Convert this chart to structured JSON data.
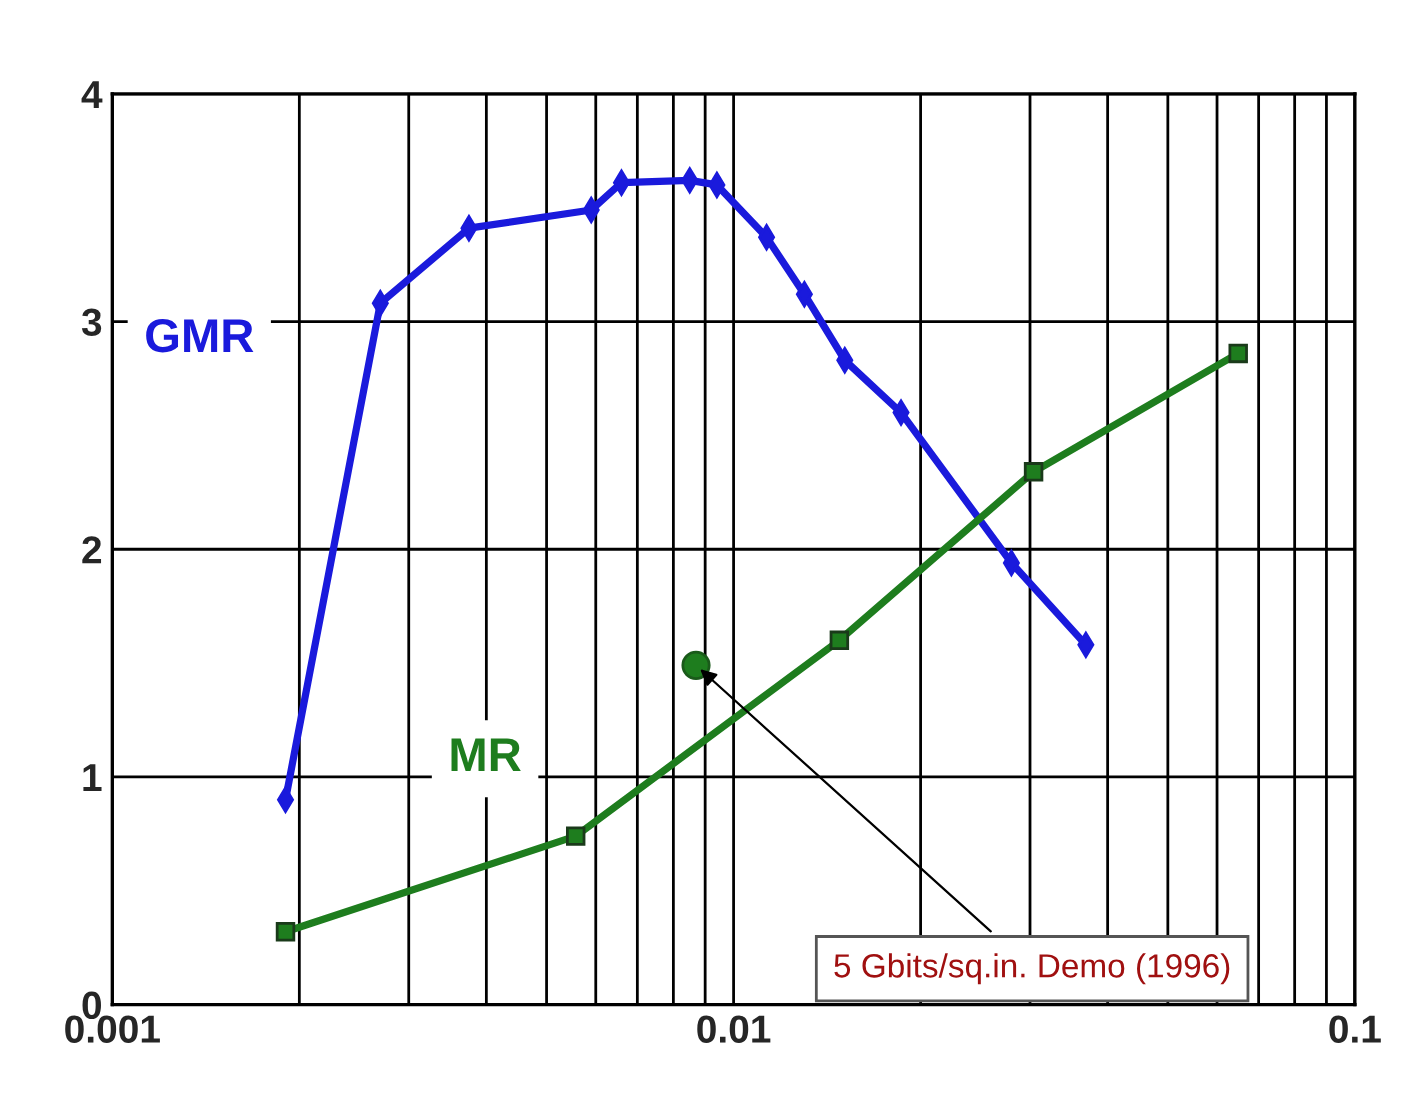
{
  "chart_data": {
    "type": "line",
    "log": "x",
    "xlim": [
      0.001,
      0.1
    ],
    "xticks": [
      0.001,
      0.01,
      0.1
    ],
    "ylim": [
      0,
      4
    ],
    "yticks": [
      0,
      1,
      2,
      3,
      4
    ],
    "grid": true,
    "legend": false,
    "series": [
      {
        "name": "GMR",
        "color": "#1a1adc",
        "marker": "diamond",
        "x": [
          0.0019,
          0.0027,
          0.00375,
          0.0059,
          0.0066,
          0.0085,
          0.0094,
          0.0113,
          0.013,
          0.0151,
          0.0186,
          0.028,
          0.0369
        ],
        "values": [
          0.9,
          3.08,
          3.41,
          3.49,
          3.61,
          3.62,
          3.6,
          3.37,
          3.12,
          2.83,
          2.6,
          1.94,
          1.58
        ]
      },
      {
        "name": "MR",
        "color": "#1e7d1e",
        "marker": "square",
        "x": [
          0.0019,
          0.00557,
          0.0148,
          0.0304,
          0.0649
        ],
        "values": [
          0.32,
          0.74,
          1.6,
          2.34,
          2.86
        ]
      },
      {
        "type": "scatter",
        "color": "#1e7d1e",
        "marker": "circle",
        "x": [
          0.0087
        ],
        "values": [
          1.49
        ]
      }
    ],
    "annotations": [
      {
        "text": "5 Gbits/sq.in. Demo (1996)",
        "x": 0.0087,
        "y": 1.49
      }
    ]
  }
}
